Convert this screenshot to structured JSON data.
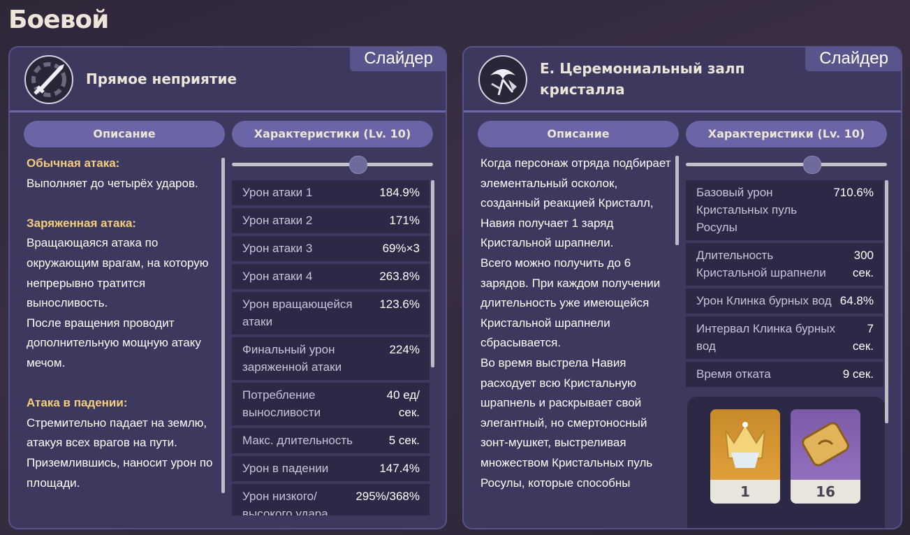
{
  "page_title": "Боевой",
  "cards": [
    {
      "badge": "Слайдер",
      "title": "Прямое неприятие",
      "tabs": [
        "Описание",
        "Характеристики (Lv. 10)"
      ],
      "description": [
        {
          "heading": "Обычная атака:",
          "lines": [
            "Выполняет до четырёх ударов."
          ]
        },
        {
          "heading": "Заряженная атака:",
          "lines": [
            "Вращающаяся атака по окружающим врагам, на которую непрерывно тратится выносливость.",
            "После вращения проводит дополнительную мощную атаку мечом."
          ]
        },
        {
          "heading": "Атака в падении:",
          "lines": [
            "Стремительно падает на землю, атакуя всех врагов на пути.",
            "Приземлившись, наносит урон по площади."
          ]
        }
      ],
      "stats": [
        {
          "label": "Урон атаки 1",
          "value": "184.9%"
        },
        {
          "label": "Урон атаки 2",
          "value": "171%"
        },
        {
          "label": "Урон атаки 3",
          "value": "69%×3"
        },
        {
          "label": "Урон атаки 4",
          "value": "263.8%"
        },
        {
          "label": "Урон вращающейся атаки",
          "value": "123.6%"
        },
        {
          "label": "Финальный урон заряженной атаки",
          "value": "224%"
        },
        {
          "label": "Потребление выносливости",
          "value": "40 ед/ сек."
        },
        {
          "label": "Макс. длительность",
          "value": "5 сек."
        },
        {
          "label": "Урон в падении",
          "value": "147.4%"
        },
        {
          "label": "Урон низкого/ высокого удара",
          "value": "295%/368%"
        }
      ]
    },
    {
      "badge": "Слайдер",
      "title": "E. Церемониальный залп кристалла",
      "tabs": [
        "Описание",
        "Характеристики (Lv. 10)"
      ],
      "description": [
        {
          "lines": [
            "Когда персонаж отряда подбирает элементальный осколок, созданный реакцией Кристалл, Навия получает 1 заряд Кристальной шрапнели.",
            "Всего можно получить до 6 зарядов. При каждом получении длительность уже имеющейся Кристальной шрапнели сбрасывается.",
            "Во время выстрела Навия расходует всю Кристальную шрапнель и раскрывает свой элегантный, но смертоносный зонт-мушкет, выстреливая множеством Кристальных пуль Росулы, которые способны"
          ]
        }
      ],
      "stats": [
        {
          "label": "Базовый урон Кристальных пуль Росулы",
          "value": "710.6%"
        },
        {
          "label": "Длительность Кристальной шрапнели",
          "value": "300 сек."
        },
        {
          "label": "Урон Клинка бурных вод",
          "value": "64.8%"
        },
        {
          "label": "Интервал Клинка бурных вод",
          "value": "7 сек."
        },
        {
          "label": "Время отката",
          "value": "9 сек."
        }
      ],
      "materials": [
        1,
        16
      ]
    }
  ]
}
